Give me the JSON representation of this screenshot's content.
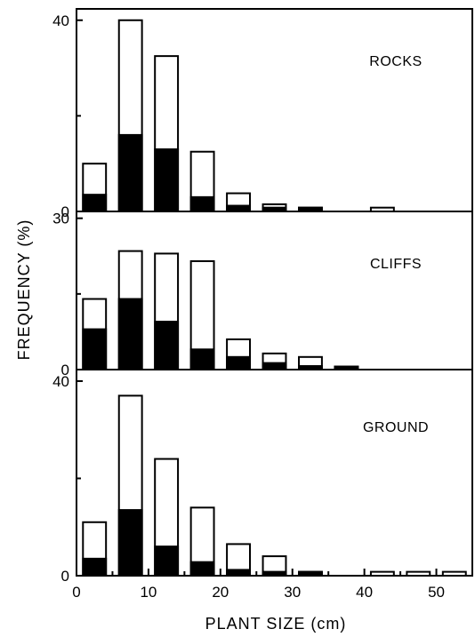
{
  "chart_data": {
    "type": "bar",
    "xlabel": "PLANT SIZE (cm)",
    "ylabel": "FREQUENCY (%)",
    "x_ticks": [
      "0",
      "10",
      "20",
      "30",
      "40",
      "50"
    ],
    "xlim": [
      0,
      55
    ],
    "bar_width_cm": 3.2,
    "colors": {
      "open": "#ffffff",
      "filled": "#000000",
      "stroke": "#000000"
    },
    "panels": [
      {
        "label": "ROCKS",
        "ylim": [
          0,
          42
        ],
        "y_ticks": [
          "0",
          "40"
        ],
        "bars": [
          {
            "x": 2.5,
            "total": 10,
            "filled": 3.5
          },
          {
            "x": 7.5,
            "total": 40,
            "filled": 16
          },
          {
            "x": 12.5,
            "total": 32.5,
            "filled": 13
          },
          {
            "x": 17.5,
            "total": 12.5,
            "filled": 3
          },
          {
            "x": 22.5,
            "total": 3.8,
            "filled": 1.2
          },
          {
            "x": 27.5,
            "total": 1.5,
            "filled": 0.8
          },
          {
            "x": 32.5,
            "total": 0.8,
            "filled": 0.8
          },
          {
            "x": 42.5,
            "total": 0.8,
            "filled": 0
          }
        ]
      },
      {
        "label": "CLIFFS",
        "ylim": [
          0,
          31
        ],
        "y_ticks": [
          "0",
          "30"
        ],
        "bars": [
          {
            "x": 2.5,
            "total": 14,
            "filled": 8
          },
          {
            "x": 7.5,
            "total": 23.5,
            "filled": 14
          },
          {
            "x": 12.5,
            "total": 23,
            "filled": 9.5
          },
          {
            "x": 17.5,
            "total": 21.5,
            "filled": 4
          },
          {
            "x": 22.5,
            "total": 6,
            "filled": 2.5
          },
          {
            "x": 27.5,
            "total": 3.2,
            "filled": 1.3
          },
          {
            "x": 32.5,
            "total": 2.5,
            "filled": 0.7
          },
          {
            "x": 37.5,
            "total": 0.6,
            "filled": 0.6
          }
        ]
      },
      {
        "label": "GROUND",
        "ylim": [
          0,
          42
        ],
        "y_ticks": [
          "0",
          "40"
        ],
        "bars": [
          {
            "x": 2.5,
            "total": 11,
            "filled": 3.5
          },
          {
            "x": 7.5,
            "total": 37,
            "filled": 13.5
          },
          {
            "x": 12.5,
            "total": 24,
            "filled": 6
          },
          {
            "x": 17.5,
            "total": 14,
            "filled": 2.8
          },
          {
            "x": 22.5,
            "total": 6.5,
            "filled": 1.2
          },
          {
            "x": 27.5,
            "total": 4,
            "filled": 0.8
          },
          {
            "x": 32.5,
            "total": 0.8,
            "filled": 0.8
          },
          {
            "x": 42.5,
            "total": 0.8,
            "filled": 0
          },
          {
            "x": 47.5,
            "total": 0.8,
            "filled": 0
          },
          {
            "x": 52.5,
            "total": 0.8,
            "filled": 0
          }
        ]
      }
    ]
  }
}
